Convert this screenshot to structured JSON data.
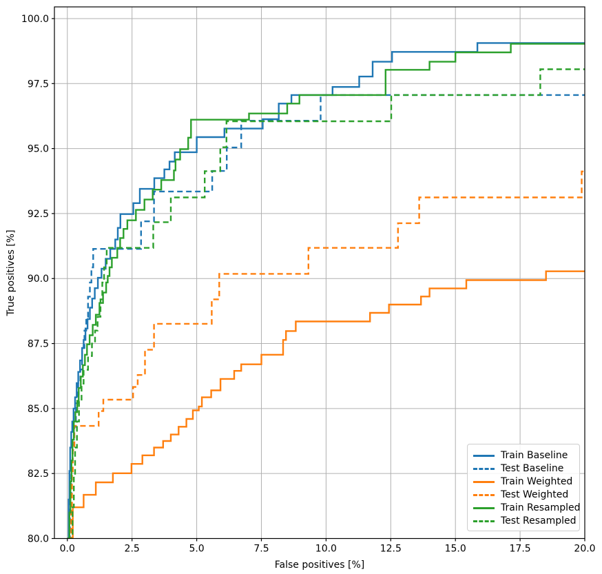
{
  "chart_data": {
    "type": "line",
    "subtype": "step-roc-curves",
    "title": "",
    "xlabel": "False positives [%]",
    "ylabel": "True positives [%]",
    "xlim": [
      -0.5,
      20
    ],
    "ylim": [
      80,
      100.45
    ],
    "grid": true,
    "legend_position": "lower right",
    "x_ticks": [
      0,
      2.5,
      5,
      7.5,
      10,
      12.5,
      15,
      17.5,
      20
    ],
    "x_tick_labels": [
      "0.0",
      "2.5",
      "5.0",
      "7.5",
      "10.0",
      "12.5",
      "15.0",
      "17.5",
      "20.0"
    ],
    "y_ticks": [
      80,
      82.5,
      85,
      87.5,
      90,
      92.5,
      95,
      97.5,
      100
    ],
    "y_tick_labels": [
      "80.0",
      "82.5",
      "85.0",
      "87.5",
      "90.0",
      "92.5",
      "95.0",
      "97.5",
      "100.0"
    ],
    "series": [
      {
        "name": "Train Baseline",
        "color": "#1f77b4",
        "style": "solid",
        "points": [
          [
            0,
            80
          ],
          [
            0.05,
            81.5
          ],
          [
            0.08,
            82.6
          ],
          [
            0.11,
            83.5
          ],
          [
            0.15,
            84.1
          ],
          [
            0.19,
            84.5
          ],
          [
            0.24,
            85.0
          ],
          [
            0.3,
            85.43
          ],
          [
            0.36,
            85.98
          ],
          [
            0.42,
            86.41
          ],
          [
            0.49,
            86.85
          ],
          [
            0.57,
            87.33
          ],
          [
            0.63,
            87.64
          ],
          [
            0.7,
            88.08
          ],
          [
            0.78,
            88.44
          ],
          [
            0.87,
            88.88
          ],
          [
            0.96,
            89.23
          ],
          [
            1.06,
            89.63
          ],
          [
            1.18,
            90.03
          ],
          [
            1.32,
            90.38
          ],
          [
            1.48,
            90.76
          ],
          [
            1.66,
            91.14
          ],
          [
            1.85,
            91.5
          ],
          [
            1.95,
            91.95
          ],
          [
            2.05,
            92.48
          ],
          [
            2.55,
            92.9
          ],
          [
            2.8,
            93.45
          ],
          [
            3.36,
            93.86
          ],
          [
            3.75,
            94.2
          ],
          [
            3.95,
            94.5
          ],
          [
            4.15,
            94.86
          ],
          [
            5.0,
            95.44
          ],
          [
            6.07,
            95.77
          ],
          [
            7.55,
            96.13
          ],
          [
            8.17,
            96.73
          ],
          [
            8.66,
            97.06
          ],
          [
            10.25,
            97.37
          ],
          [
            11.28,
            97.77
          ],
          [
            11.8,
            98.34
          ],
          [
            12.55,
            98.72
          ],
          [
            15.85,
            99.06
          ],
          [
            20,
            99.06
          ]
        ]
      },
      {
        "name": "Test Baseline",
        "color": "#1f77b4",
        "style": "dashed",
        "points": [
          [
            0,
            80
          ],
          [
            0.1,
            81.5
          ],
          [
            0.15,
            82.8
          ],
          [
            0.2,
            83.6
          ],
          [
            0.27,
            84.3
          ],
          [
            0.33,
            85.2
          ],
          [
            0.42,
            86.0
          ],
          [
            0.5,
            86.5
          ],
          [
            0.57,
            87.33
          ],
          [
            0.66,
            88.0
          ],
          [
            0.73,
            88.53
          ],
          [
            0.8,
            89.3
          ],
          [
            0.87,
            89.85
          ],
          [
            0.93,
            90.43
          ],
          [
            1.0,
            91.14
          ],
          [
            2.85,
            92.2
          ],
          [
            3.35,
            93.35
          ],
          [
            5.6,
            94.14
          ],
          [
            6.16,
            95.04
          ],
          [
            6.72,
            96.07
          ],
          [
            9.79,
            97.06
          ],
          [
            20,
            97.06
          ]
        ]
      },
      {
        "name": "Train Weighted",
        "color": "#ff7f0e",
        "style": "solid",
        "points": [
          [
            0,
            80
          ],
          [
            0.21,
            81.2
          ],
          [
            0.63,
            81.68
          ],
          [
            1.1,
            82.16
          ],
          [
            1.76,
            82.51
          ],
          [
            2.48,
            82.87
          ],
          [
            2.9,
            83.2
          ],
          [
            3.35,
            83.5
          ],
          [
            3.7,
            83.75
          ],
          [
            4.0,
            84.0
          ],
          [
            4.3,
            84.3
          ],
          [
            4.6,
            84.6
          ],
          [
            4.85,
            84.93
          ],
          [
            5.08,
            85.08
          ],
          [
            5.2,
            85.43
          ],
          [
            5.56,
            85.7
          ],
          [
            5.92,
            86.14
          ],
          [
            6.45,
            86.45
          ],
          [
            6.72,
            86.7
          ],
          [
            7.5,
            87.07
          ],
          [
            8.34,
            87.64
          ],
          [
            8.45,
            87.98
          ],
          [
            8.83,
            88.35
          ],
          [
            11.7,
            88.68
          ],
          [
            12.43,
            89.0
          ],
          [
            13.67,
            89.31
          ],
          [
            14.0,
            89.62
          ],
          [
            15.42,
            89.94
          ],
          [
            18.5,
            90.28
          ],
          [
            20,
            90.28
          ]
        ]
      },
      {
        "name": "Test Weighted",
        "color": "#ff7f0e",
        "style": "dashed",
        "points": [
          [
            0,
            80
          ],
          [
            0.15,
            81.2
          ],
          [
            0.18,
            82.5
          ],
          [
            0.21,
            83.4
          ],
          [
            0.27,
            84.33
          ],
          [
            1.21,
            84.9
          ],
          [
            1.39,
            85.34
          ],
          [
            2.54,
            85.83
          ],
          [
            2.72,
            86.29
          ],
          [
            3.0,
            87.26
          ],
          [
            3.35,
            88.26
          ],
          [
            5.58,
            89.2
          ],
          [
            5.87,
            90.18
          ],
          [
            9.32,
            91.18
          ],
          [
            12.78,
            92.13
          ],
          [
            13.6,
            93.12
          ],
          [
            19.88,
            94.12
          ],
          [
            20,
            94.12
          ]
        ]
      },
      {
        "name": "Train Resampled",
        "color": "#2ca02c",
        "style": "solid",
        "points": [
          [
            0,
            80
          ],
          [
            0.08,
            81.0
          ],
          [
            0.12,
            82.2
          ],
          [
            0.16,
            83.0
          ],
          [
            0.2,
            83.8
          ],
          [
            0.25,
            84.5
          ],
          [
            0.31,
            84.86
          ],
          [
            0.38,
            85.3
          ],
          [
            0.44,
            85.79
          ],
          [
            0.52,
            86.23
          ],
          [
            0.6,
            86.67
          ],
          [
            0.68,
            87.07
          ],
          [
            0.76,
            87.47
          ],
          [
            0.86,
            87.82
          ],
          [
            0.98,
            88.22
          ],
          [
            1.1,
            88.61
          ],
          [
            1.24,
            89.06
          ],
          [
            1.38,
            89.46
          ],
          [
            1.5,
            89.85
          ],
          [
            1.56,
            90.1
          ],
          [
            1.63,
            90.43
          ],
          [
            1.72,
            90.8
          ],
          [
            1.93,
            91.18
          ],
          [
            2.04,
            91.56
          ],
          [
            2.17,
            91.91
          ],
          [
            2.32,
            92.24
          ],
          [
            2.65,
            92.64
          ],
          [
            2.98,
            93.04
          ],
          [
            3.3,
            93.42
          ],
          [
            3.63,
            93.79
          ],
          [
            4.12,
            94.16
          ],
          [
            4.18,
            94.58
          ],
          [
            4.36,
            94.98
          ],
          [
            4.67,
            95.42
          ],
          [
            4.78,
            96.11
          ],
          [
            7.02,
            96.35
          ],
          [
            8.5,
            96.73
          ],
          [
            8.97,
            97.06
          ],
          [
            12.3,
            98.03
          ],
          [
            14.0,
            98.34
          ],
          [
            15.0,
            98.7
          ],
          [
            17.14,
            99.03
          ],
          [
            20,
            99.03
          ]
        ]
      },
      {
        "name": "Test Resampled",
        "color": "#2ca02c",
        "style": "dashed",
        "points": [
          [
            0,
            80
          ],
          [
            0.2,
            81.2
          ],
          [
            0.25,
            82.4
          ],
          [
            0.3,
            83.5
          ],
          [
            0.37,
            84.5
          ],
          [
            0.45,
            85.3
          ],
          [
            0.55,
            85.96
          ],
          [
            0.63,
            86.49
          ],
          [
            0.8,
            87.02
          ],
          [
            0.95,
            87.5
          ],
          [
            1.07,
            88.0
          ],
          [
            1.17,
            88.53
          ],
          [
            1.28,
            89.2
          ],
          [
            1.35,
            89.85
          ],
          [
            1.42,
            90.43
          ],
          [
            1.52,
            91.18
          ],
          [
            3.32,
            92.17
          ],
          [
            4.0,
            93.12
          ],
          [
            5.31,
            94.13
          ],
          [
            5.91,
            95.05
          ],
          [
            6.15,
            96.05
          ],
          [
            12.52,
            97.06
          ],
          [
            18.28,
            98.05
          ],
          [
            20,
            98.05
          ]
        ]
      }
    ]
  },
  "legend": {
    "entries": [
      {
        "label": "Train Baseline",
        "color": "#1f77b4",
        "style": "solid"
      },
      {
        "label": "Test Baseline",
        "color": "#1f77b4",
        "style": "dashed"
      },
      {
        "label": "Train Weighted",
        "color": "#ff7f0e",
        "style": "solid"
      },
      {
        "label": "Test Weighted",
        "color": "#ff7f0e",
        "style": "dashed"
      },
      {
        "label": "Train Resampled",
        "color": "#2ca02c",
        "style": "solid"
      },
      {
        "label": "Test Resampled",
        "color": "#2ca02c",
        "style": "dashed"
      }
    ]
  },
  "colors": {
    "blue": "#1f77b4",
    "orange": "#ff7f0e",
    "green": "#2ca02c",
    "grid": "#b0b0b0",
    "spine": "#000000",
    "background": "#ffffff"
  }
}
